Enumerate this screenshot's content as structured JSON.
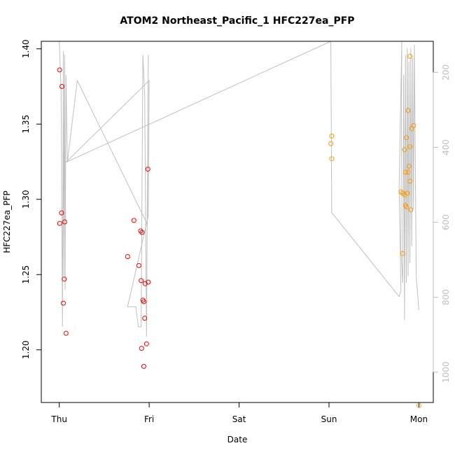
{
  "chart_data": {
    "type": "scatter",
    "title": "ATOM2 Northeast_Pacific_1 HFC227ea_PFP",
    "xlabel": "Date",
    "ylabel": "HFC227ea_PFP",
    "x_ticks": [
      {
        "label": "Thu",
        "value": 0
      },
      {
        "label": "Fri",
        "value": 1
      },
      {
        "label": "Sat",
        "value": 2
      },
      {
        "label": "Sun",
        "value": 3
      },
      {
        "label": "Mon",
        "value": 4
      }
    ],
    "xlim": [
      -0.2,
      4.16
    ],
    "ylim": [
      1.165,
      1.405
    ],
    "y_ticks": [
      1.2,
      1.25,
      1.3,
      1.35,
      1.4
    ],
    "y_tick_labels": [
      "1.20",
      "1.25",
      "1.30",
      "1.35",
      "1.40"
    ],
    "y2_ticks": [
      200,
      400,
      600,
      800,
      1000
    ],
    "y2_tick_labels": [
      "200",
      "400",
      "600",
      "800",
      "1000"
    ],
    "y2lim": [
      1081,
      117
    ],
    "colors": {
      "red_points": "#ff0000",
      "orange_points": "#ff9900",
      "altitude_line": "#c0c0c0",
      "axis_right": "#bfbfbf"
    },
    "series": [
      {
        "color": "#ff0000",
        "points": [
          [
            0.003,
            1.386
          ],
          [
            0.03,
            1.375
          ],
          [
            0.025,
            1.291
          ],
          [
            0.005,
            1.284
          ],
          [
            0.06,
            1.285
          ],
          [
            0.055,
            1.247
          ],
          [
            0.045,
            1.231
          ],
          [
            0.075,
            1.211
          ],
          [
            0.76,
            1.262
          ],
          [
            0.83,
            1.286
          ],
          [
            0.885,
            1.256
          ],
          [
            0.905,
            1.279
          ],
          [
            0.92,
            1.278
          ],
          [
            0.91,
            1.246
          ],
          [
            0.93,
            1.233
          ],
          [
            0.94,
            1.232
          ],
          [
            0.955,
            1.244
          ],
          [
            0.99,
            1.245
          ],
          [
            0.95,
            1.221
          ],
          [
            0.97,
            1.204
          ],
          [
            0.915,
            1.201
          ],
          [
            0.94,
            1.189
          ],
          [
            0.985,
            1.32
          ]
        ]
      },
      {
        "color": "#ff9900",
        "points": [
          [
            3.03,
            1.342
          ],
          [
            3.02,
            1.337
          ],
          [
            3.03,
            1.327
          ],
          [
            3.8,
            1.305
          ],
          [
            3.82,
            1.304
          ],
          [
            3.84,
            1.303
          ],
          [
            3.87,
            1.304
          ],
          [
            3.86,
            1.341
          ],
          [
            3.85,
            1.318
          ],
          [
            3.88,
            1.318
          ],
          [
            3.89,
            1.322
          ],
          [
            3.9,
            1.312
          ],
          [
            3.9,
            1.335
          ],
          [
            3.92,
            1.347
          ],
          [
            3.94,
            1.349
          ],
          [
            3.88,
            1.359
          ],
          [
            3.9,
            1.395
          ],
          [
            3.84,
            1.333
          ],
          [
            3.85,
            1.296
          ],
          [
            3.86,
            1.295
          ],
          [
            3.91,
            1.293
          ],
          [
            3.82,
            1.264
          ],
          [
            4.0,
            1.163
          ]
        ]
      }
    ],
    "altitude_line": [
      [
        0.0,
        0
      ],
      [
        0.02,
        150
      ],
      [
        0.035,
        850
      ],
      [
        0.045,
        30
      ],
      [
        0.05,
        700
      ],
      [
        0.06,
        40
      ],
      [
        0.065,
        740
      ],
      [
        0.075,
        100
      ],
      [
        0.09,
        360
      ],
      [
        0.2,
        117
      ],
      [
        0.98,
        545
      ],
      [
        0.99,
        40
      ],
      [
        0.97,
        880
      ],
      [
        0.95,
        160
      ],
      [
        0.93,
        40
      ],
      [
        0.91,
        850
      ],
      [
        0.88,
        850
      ],
      [
        0.85,
        790
      ],
      [
        0.77,
        790
      ],
      [
        0.76,
        790
      ],
      [
        0.99,
        520
      ],
      [
        1.0,
        117
      ],
      [
        0.075,
        360
      ],
      [
        3.02,
        0
      ],
      [
        3.03,
        510
      ],
      [
        3.78,
        760
      ],
      [
        3.8,
        740
      ],
      [
        3.78,
        430
      ],
      [
        3.81,
        0
      ],
      [
        3.8,
        620
      ],
      [
        3.82,
        720
      ],
      [
        3.83,
        100
      ],
      [
        3.84,
        830
      ],
      [
        3.85,
        40
      ],
      [
        3.86,
        720
      ],
      [
        3.87,
        20
      ],
      [
        3.88,
        700
      ],
      [
        3.89,
        60
      ],
      [
        3.9,
        660
      ],
      [
        3.91,
        20
      ],
      [
        3.92,
        610
      ],
      [
        3.93,
        50
      ],
      [
        3.94,
        500
      ],
      [
        3.95,
        10
      ],
      [
        3.97,
        700
      ],
      [
        4.0,
        800
      ]
    ]
  }
}
